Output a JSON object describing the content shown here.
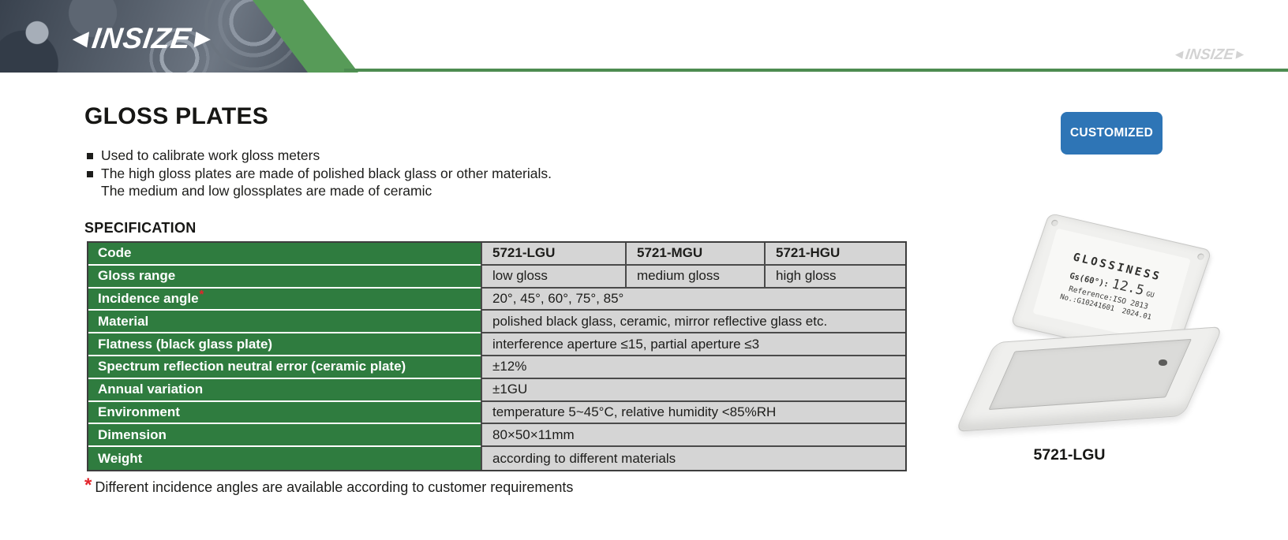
{
  "header": {
    "logo_text": "INSIZE",
    "watermark_text": "INSIZE"
  },
  "content": {
    "title": "GLOSS PLATES",
    "bullets": [
      {
        "lines": [
          "Used to calibrate work gloss meters"
        ]
      },
      {
        "lines": [
          "The high gloss plates are made of polished black glass or other materials.",
          "The medium and low glossplates are made of ceramic"
        ]
      }
    ],
    "customized_button": "CUSTOMIZED",
    "spec_heading": "SPECIFICATION",
    "footnote_marker": "*",
    "footnote_text": "Different incidence angles are available according to customer requirements"
  },
  "table": {
    "rows": [
      {
        "label": "Code",
        "bold_values": true,
        "cells": [
          "5721-LGU",
          "5721-MGU",
          "5721-HGU"
        ]
      },
      {
        "label": "Gloss range",
        "cells": [
          "low gloss",
          "medium gloss",
          "high gloss"
        ]
      },
      {
        "label": "Incidence angle",
        "asterisk": true,
        "cells": [
          "20°, 45°, 60°, 75°, 85°"
        ]
      },
      {
        "label": "Material",
        "cells": [
          "polished black glass, ceramic, mirror reflective glass etc."
        ]
      },
      {
        "label": "Flatness (black glass plate)",
        "cells": [
          "interference aperture ≤15, partial aperture ≤3"
        ]
      },
      {
        "label": "Spectrum reflection neutral error (ceramic plate)",
        "cells": [
          "±12%"
        ]
      },
      {
        "label": "Annual variation",
        "cells": [
          "±1GU"
        ]
      },
      {
        "label": "Environment",
        "cells": [
          "temperature 5~45°C, relative humidity <85%RH"
        ]
      },
      {
        "label": "Dimension",
        "cells": [
          "80×50×11mm"
        ]
      },
      {
        "label": "Weight",
        "cells": [
          "according to different materials"
        ]
      }
    ]
  },
  "product": {
    "label_title": "GLOSSINESS",
    "gs_label": "Gs(60°):",
    "gs_value": "12.5",
    "gs_unit": "GU",
    "reference_line": "Reference:ISO 2813",
    "serial_line": "No.:G10241601",
    "date": "2024.01",
    "caption": "5721-LGU"
  },
  "colors": {
    "table_green": "#2f7c3f",
    "chevron_green": "#579b58",
    "line_green": "#4d8c51",
    "button_blue": "#2e75b6",
    "cell_gray": "#d5d5d5",
    "accent_red": "#e3242b"
  }
}
